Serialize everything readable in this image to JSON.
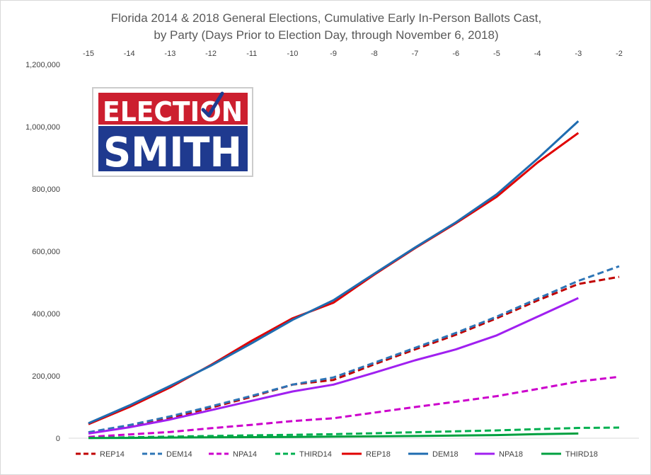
{
  "chart_data": {
    "type": "line",
    "title_lines": [
      "Florida 2014 & 2018 General Elections, Cumulative Early In-Person Ballots Cast,",
      "by Party (Days Prior to Election Day, through November 6, 2018)"
    ],
    "x": [
      -15,
      -14,
      -13,
      -12,
      -11,
      -10,
      -9,
      -8,
      -7,
      -6,
      -5,
      -4,
      -3,
      -2
    ],
    "x_tick_labels": [
      "-15",
      "-14",
      "-13",
      "-12",
      "-11",
      "-10",
      "-9",
      "-8",
      "-7",
      "-6",
      "-5",
      "-4",
      "-3",
      "-2"
    ],
    "y_tick_labels": [
      "0",
      "200,000",
      "400,000",
      "600,000",
      "800,000",
      "1,000,000",
      "1,200,000"
    ],
    "ylim": [
      0,
      1200000
    ],
    "x_axis_position": "top",
    "grid": false,
    "legend_position": "bottom",
    "series": [
      {
        "name": "REP14",
        "color": "#c00000",
        "dash": "dashed",
        "values": [
          18000,
          38000,
          65000,
          98000,
          133000,
          172000,
          187000,
          237000,
          285000,
          332000,
          385000,
          442000,
          495000,
          518000
        ]
      },
      {
        "name": "DEM14",
        "color": "#2e75b6",
        "dash": "dashed",
        "values": [
          19000,
          42000,
          70000,
          102000,
          136000,
          172000,
          195000,
          242000,
          290000,
          338000,
          390000,
          448000,
          505000,
          552000
        ]
      },
      {
        "name": "NPA14",
        "color": "#cc00cc",
        "dash": "dashed",
        "values": [
          4000,
          12000,
          20000,
          32000,
          43000,
          55000,
          64000,
          82000,
          100000,
          117000,
          135000,
          158000,
          182000,
          197000
        ]
      },
      {
        "name": "THIRD14",
        "color": "#00b050",
        "dash": "dashed",
        "values": [
          1000,
          3000,
          5000,
          7000,
          9000,
          11000,
          13000,
          16000,
          19000,
          22000,
          25000,
          29000,
          33000,
          34000
        ]
      },
      {
        "name": "REP18",
        "color": "#e00000",
        "dash": "solid",
        "values": [
          45000,
          100000,
          163000,
          235000,
          313000,
          385000,
          435000,
          525000,
          610000,
          690000,
          775000,
          885000,
          980000,
          null
        ]
      },
      {
        "name": "DEM18",
        "color": "#1f6cb0",
        "dash": "solid",
        "values": [
          48000,
          105000,
          168000,
          233000,
          305000,
          380000,
          443000,
          528000,
          612000,
          693000,
          783000,
          897000,
          1018000,
          null
        ]
      },
      {
        "name": "NPA18",
        "color": "#a020f0",
        "dash": "solid",
        "values": [
          15000,
          35000,
          60000,
          90000,
          120000,
          150000,
          172000,
          210000,
          250000,
          285000,
          330000,
          390000,
          450000,
          null
        ]
      },
      {
        "name": "THIRD18",
        "color": "#00a040",
        "dash": "solid",
        "values": [
          500,
          1000,
          2000,
          3000,
          3500,
          4000,
          5000,
          6000,
          7000,
          8500,
          10000,
          13000,
          15000,
          null
        ]
      }
    ]
  },
  "logo": {
    "line1": "ELECTION",
    "line2": "SMITH",
    "colors": {
      "red": "#cc1f2f",
      "blue": "#1f3a8f",
      "white": "#ffffff"
    }
  }
}
